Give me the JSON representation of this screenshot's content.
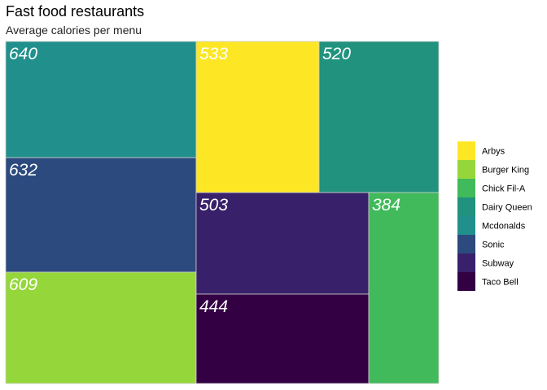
{
  "chart_data": {
    "type": "treemap",
    "title": "Fast food restaurants",
    "subtitle": "Average calories per menu",
    "legend_position": "right",
    "tiles": [
      {
        "name": "Mcdonalds",
        "value": 640,
        "color": "#21908C"
      },
      {
        "name": "Sonic",
        "value": 632,
        "color": "#2C4A7E"
      },
      {
        "name": "Burger King",
        "value": 609,
        "color": "#95D73A"
      },
      {
        "name": "Arbys",
        "value": 533,
        "color": "#FDE725"
      },
      {
        "name": "Dairy Queen",
        "value": 520,
        "color": "#21927E"
      },
      {
        "name": "Subway",
        "value": 503,
        "color": "#39206B"
      },
      {
        "name": "Taco Bell",
        "value": 444,
        "color": "#330044"
      },
      {
        "name": "Chick Fil-A",
        "value": 384,
        "color": "#40BA5A"
      }
    ],
    "legend": [
      {
        "name": "Arbys",
        "color": "#FDE725"
      },
      {
        "name": "Burger King",
        "color": "#95D73A"
      },
      {
        "name": "Chick Fil-A",
        "color": "#40BA5A"
      },
      {
        "name": "Dairy Queen",
        "color": "#21927E"
      },
      {
        "name": "Mcdonalds",
        "color": "#21908C"
      },
      {
        "name": "Sonic",
        "color": "#2C4A7E"
      },
      {
        "name": "Subway",
        "color": "#39206B"
      },
      {
        "name": "Taco Bell",
        "color": "#330044"
      }
    ]
  }
}
